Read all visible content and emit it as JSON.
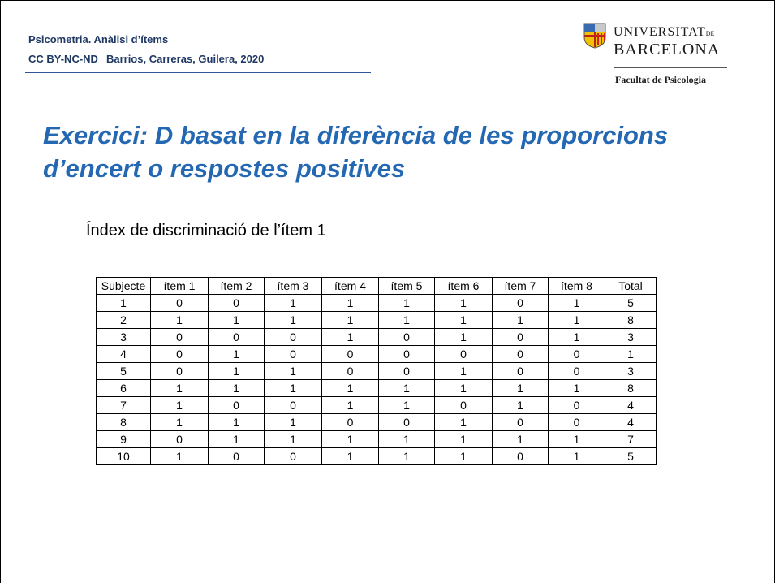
{
  "header": {
    "line1": "Psicometria. Anàlisi d’ítems",
    "license": "CC BY-NC-ND",
    "authors": "Barrios, Carreras, Guilera, 2020"
  },
  "logo": {
    "name1": "UNIVERSITAT",
    "de": "DE",
    "name2": "BARCELONA",
    "faculty": "Facultat de Psicologia"
  },
  "title": "Exercici: D basat en la diferència de les proporcions d’encert o respostes positives",
  "subtitle": "Índex de discriminació de l’ítem 1",
  "table": {
    "columns": [
      "Subjecte",
      "ítem 1",
      "ítem 2",
      "ítem 3",
      "ítem 4",
      "ítem 5",
      "ítem 6",
      "ítem 7",
      "ítem 8",
      "Total"
    ],
    "rows": [
      [
        1,
        0,
        0,
        1,
        1,
        1,
        1,
        0,
        1,
        5
      ],
      [
        2,
        1,
        1,
        1,
        1,
        1,
        1,
        1,
        1,
        8
      ],
      [
        3,
        0,
        0,
        0,
        1,
        0,
        1,
        0,
        1,
        3
      ],
      [
        4,
        0,
        1,
        0,
        0,
        0,
        0,
        0,
        0,
        1
      ],
      [
        5,
        0,
        1,
        1,
        0,
        0,
        1,
        0,
        0,
        3
      ],
      [
        6,
        1,
        1,
        1,
        1,
        1,
        1,
        1,
        1,
        8
      ],
      [
        7,
        1,
        0,
        0,
        1,
        1,
        0,
        1,
        0,
        4
      ],
      [
        8,
        1,
        1,
        1,
        0,
        0,
        1,
        0,
        0,
        4
      ],
      [
        9,
        0,
        1,
        1,
        1,
        1,
        1,
        1,
        1,
        7
      ],
      [
        10,
        1,
        0,
        0,
        1,
        1,
        1,
        0,
        1,
        5
      ]
    ]
  }
}
